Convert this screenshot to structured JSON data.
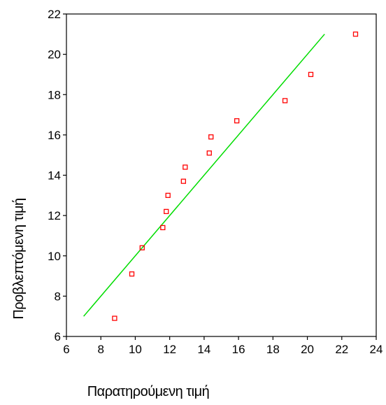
{
  "chart_data": {
    "type": "scatter",
    "xlabel": "Παρατηρούμενη τιμή",
    "ylabel": "Προβλεπτόμενη τιμή",
    "xlim": [
      6,
      24
    ],
    "ylim": [
      6,
      22
    ],
    "xticks": [
      6,
      8,
      10,
      12,
      14,
      16,
      18,
      20,
      22,
      24
    ],
    "yticks": [
      6,
      8,
      10,
      12,
      14,
      16,
      18,
      20,
      22
    ],
    "grid": false,
    "marker": "square",
    "marker_color": "#ff0000",
    "line_color": "#00dd00",
    "points": [
      {
        "x": 8.8,
        "y": 6.9
      },
      {
        "x": 9.8,
        "y": 9.1
      },
      {
        "x": 10.4,
        "y": 10.4
      },
      {
        "x": 11.6,
        "y": 11.4
      },
      {
        "x": 11.8,
        "y": 12.2
      },
      {
        "x": 11.9,
        "y": 13.0
      },
      {
        "x": 12.8,
        "y": 13.7
      },
      {
        "x": 12.9,
        "y": 14.4
      },
      {
        "x": 14.3,
        "y": 15.1
      },
      {
        "x": 14.4,
        "y": 15.9
      },
      {
        "x": 15.9,
        "y": 16.7
      },
      {
        "x": 18.7,
        "y": 17.7
      },
      {
        "x": 20.2,
        "y": 19.0
      },
      {
        "x": 22.8,
        "y": 21.0
      }
    ],
    "reference_line": {
      "x": [
        7,
        21
      ],
      "y": [
        7,
        21
      ]
    }
  }
}
